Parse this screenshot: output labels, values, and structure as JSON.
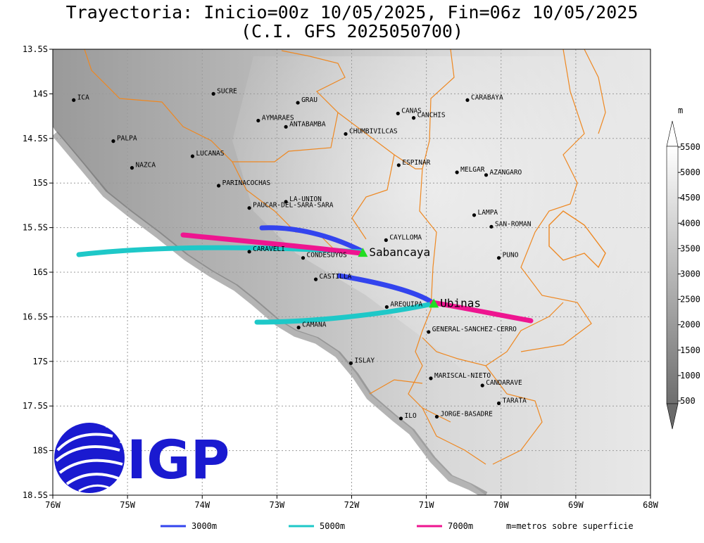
{
  "title": {
    "line1": "Trayectoria: Inicio=00z 10/05/2025, Fin=06z 10/05/2025",
    "line2": "(C.I. GFS 2025050700)"
  },
  "map": {
    "lon_range": [
      -76,
      -68
    ],
    "lat_range": [
      -18.5,
      -13.5
    ],
    "x_ticks": [
      {
        "lon": -76,
        "label": "76W"
      },
      {
        "lon": -75,
        "label": "75W"
      },
      {
        "lon": -74,
        "label": "74W"
      },
      {
        "lon": -73,
        "label": "73W"
      },
      {
        "lon": -72,
        "label": "72W"
      },
      {
        "lon": -71,
        "label": "71W"
      },
      {
        "lon": -70,
        "label": "70W"
      },
      {
        "lon": -69,
        "label": "69W"
      },
      {
        "lon": -68,
        "label": "68W"
      }
    ],
    "y_ticks": [
      {
        "lat": -13.5,
        "label": "13.5S"
      },
      {
        "lat": -14,
        "label": "14S"
      },
      {
        "lat": -14.5,
        "label": "14.5S"
      },
      {
        "lat": -15,
        "label": "15S"
      },
      {
        "lat": -15.5,
        "label": "15.5S"
      },
      {
        "lat": -16,
        "label": "16S"
      },
      {
        "lat": -16.5,
        "label": "16.5S"
      },
      {
        "lat": -17,
        "label": "17S"
      },
      {
        "lat": -17.5,
        "label": "17.5S"
      },
      {
        "lat": -18,
        "label": "18S"
      },
      {
        "lat": -18.5,
        "label": "18.5S"
      }
    ],
    "places": [
      {
        "name": "ICA",
        "lon": -75.72,
        "lat": -14.07
      },
      {
        "name": "SUCRE",
        "lon": -73.85,
        "lat": -14.0
      },
      {
        "name": "GRAU",
        "lon": -72.72,
        "lat": -14.1
      },
      {
        "name": "AYMARAES",
        "lon": -73.25,
        "lat": -14.3
      },
      {
        "name": "ANTABAMBA",
        "lon": -72.88,
        "lat": -14.37
      },
      {
        "name": "CANAS",
        "lon": -71.38,
        "lat": -14.22
      },
      {
        "name": "CANCHIS",
        "lon": -71.17,
        "lat": -14.27
      },
      {
        "name": "CARABAYA",
        "lon": -70.45,
        "lat": -14.07
      },
      {
        "name": "CHUMBIVILCAS",
        "lon": -72.08,
        "lat": -14.45
      },
      {
        "name": "PALPA",
        "lon": -75.19,
        "lat": -14.53
      },
      {
        "name": "LUCANAS",
        "lon": -74.13,
        "lat": -14.7
      },
      {
        "name": "NAZCA",
        "lon": -74.94,
        "lat": -14.83
      },
      {
        "name": "ESPINAR",
        "lon": -71.37,
        "lat": -14.8
      },
      {
        "name": "MELGAR",
        "lon": -70.59,
        "lat": -14.88
      },
      {
        "name": "AZANGARO",
        "lon": -70.2,
        "lat": -14.91
      },
      {
        "name": "PARINACOCHAS",
        "lon": -73.78,
        "lat": -15.03
      },
      {
        "name": "LA-UNION",
        "lon": -72.88,
        "lat": -15.21
      },
      {
        "name": "PAUCAR-DEL-SARA-SARA",
        "lon": -73.37,
        "lat": -15.28
      },
      {
        "name": "LAMPA",
        "lon": -70.36,
        "lat": -15.36
      },
      {
        "name": "SAN-ROMAN",
        "lon": -70.13,
        "lat": -15.49
      },
      {
        "name": "CAYLLOMA",
        "lon": -71.54,
        "lat": -15.64
      },
      {
        "name": "CARAVELI",
        "lon": -73.37,
        "lat": -15.77
      },
      {
        "name": "CONDESUYOS",
        "lon": -72.65,
        "lat": -15.84
      },
      {
        "name": "PUNO",
        "lon": -70.03,
        "lat": -15.84
      },
      {
        "name": "CASTILLA",
        "lon": -72.48,
        "lat": -16.08
      },
      {
        "name": "AREQUIPA",
        "lon": -71.53,
        "lat": -16.39
      },
      {
        "name": "CAMANA",
        "lon": -72.71,
        "lat": -16.62
      },
      {
        "name": "GENERAL-SANCHEZ-CERRO",
        "lon": -70.97,
        "lat": -16.67
      },
      {
        "name": "ISLAY",
        "lon": -72.01,
        "lat": -17.02
      },
      {
        "name": "MARISCAL-NIETO",
        "lon": -70.94,
        "lat": -17.19
      },
      {
        "name": "CANDARAVE",
        "lon": -70.25,
        "lat": -17.27
      },
      {
        "name": "TARATA",
        "lon": -70.03,
        "lat": -17.47
      },
      {
        "name": "ILO",
        "lon": -71.34,
        "lat": -17.64
      },
      {
        "name": "JORGE-BASADRE",
        "lon": -70.86,
        "lat": -17.62
      }
    ],
    "volcanoes": [
      {
        "name": "Sabancaya",
        "lon": -71.85,
        "lat": -15.78
      },
      {
        "name": "Ubinas",
        "lon": -70.9,
        "lat": -16.35
      }
    ]
  },
  "colorbar": {
    "unit": "m",
    "labels": [
      "5500",
      "5000",
      "4500",
      "4000",
      "3500",
      "3000",
      "2500",
      "2000",
      "1500",
      "1000",
      "500"
    ]
  },
  "legend": {
    "items": [
      {
        "label": "3000m",
        "color": "#3344ee"
      },
      {
        "label": "5000m",
        "color": "#1ec8c8"
      },
      {
        "label": "7000m",
        "color": "#ee1590"
      }
    ],
    "note": "m=metros sobre superficie"
  },
  "logo": {
    "text": "IGP",
    "color": "#1a1ad0"
  },
  "colors": {
    "border": "#ee8822",
    "ocean": "#ffffff",
    "land_low": "#8a8a8a",
    "land_high": "#f0f0f0"
  }
}
